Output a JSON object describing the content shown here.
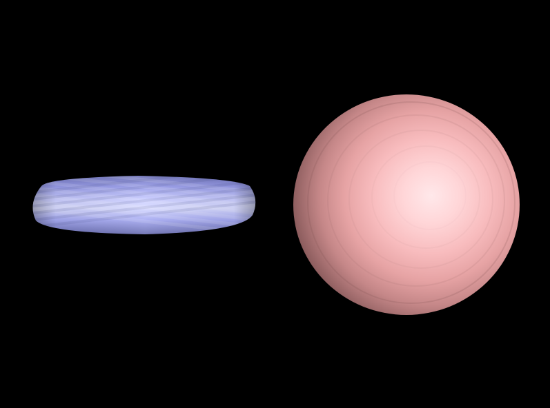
{
  "scene": {
    "background": "#000000",
    "objects": [
      {
        "name": "torus",
        "shape": "torus",
        "view": "edge-on",
        "base_color": "#b9bcff",
        "highlight_color": "#dde0ff",
        "shadow_color": "#6f73b8"
      },
      {
        "name": "sphere",
        "shape": "sphere",
        "view": "front",
        "base_color": "#f0aaaa",
        "highlight_color": "#ffe4e6",
        "shadow_color": "#9a6565"
      }
    ]
  }
}
